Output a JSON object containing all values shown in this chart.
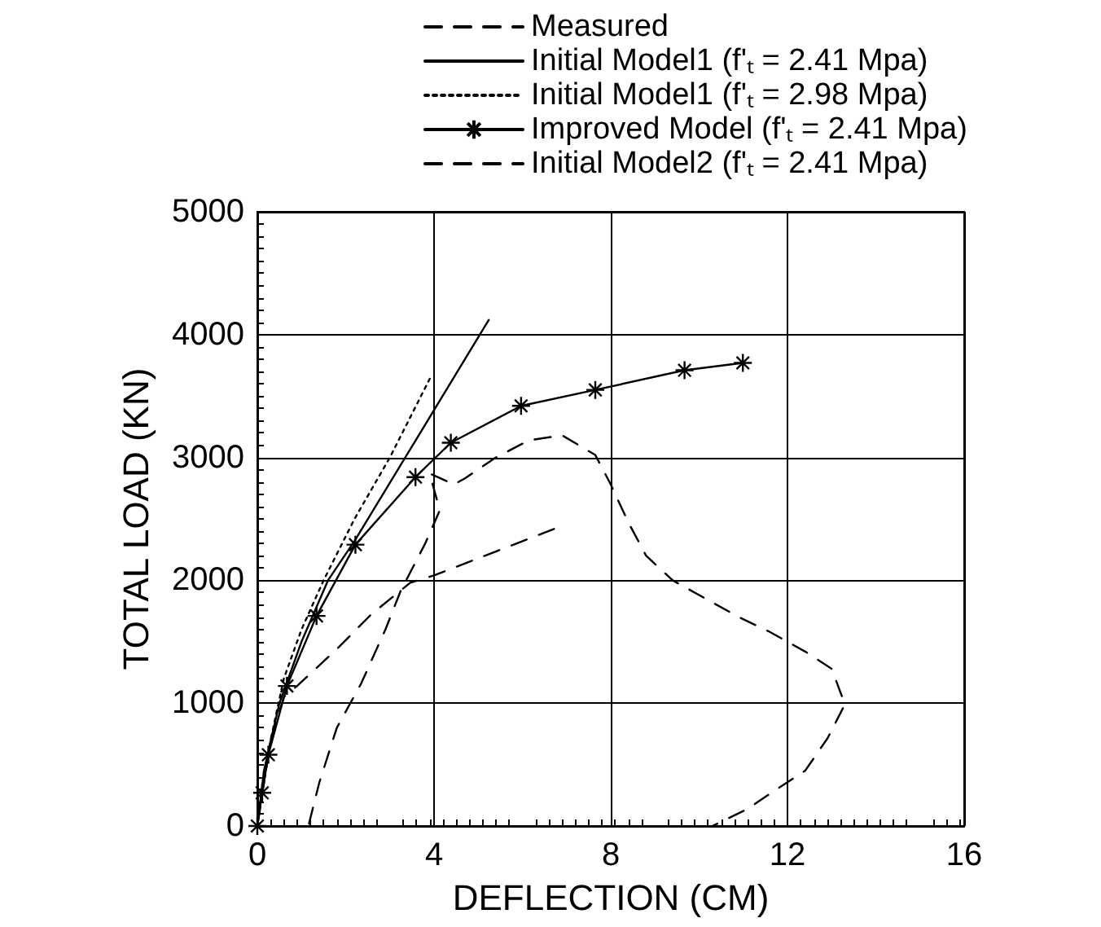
{
  "chart_data": {
    "type": "line",
    "xlabel": "DEFLECTION (CM)",
    "ylabel": "TOTAL LOAD (KN)",
    "xlim": [
      0,
      16
    ],
    "xticks": [
      0,
      4,
      8,
      12,
      16
    ],
    "ylim": [
      0,
      5000
    ],
    "yticks": [
      0,
      1000,
      2000,
      3000,
      4000,
      5000
    ],
    "grid": true,
    "legend": "top",
    "series": [
      {
        "name": "Measured",
        "color": "#000000",
        "line_style": "dashed",
        "marker": "none",
        "x": [
          1.17,
          1.4,
          1.8,
          2.35,
          2.9,
          3.24,
          3.8,
          4.13,
          3.9,
          4.45,
          4.7,
          5.4,
          6.15,
          6.9,
          7.65,
          8.0,
          8.4,
          8.8,
          9.4,
          10.1,
          10.9,
          11.6,
          12.4,
          13.0,
          13.3,
          12.9,
          12.4,
          11.8,
          11.1,
          10.3
        ],
        "values": [
          20,
          350,
          800,
          1160,
          1600,
          1910,
          2300,
          2570,
          2870,
          2780,
          2830,
          3000,
          3140,
          3180,
          3020,
          2780,
          2470,
          2200,
          2000,
          1860,
          1700,
          1580,
          1420,
          1280,
          990,
          710,
          450,
          310,
          140,
          0
        ]
      },
      {
        "name": "Initial Model1 (f'ₜ = 2.41 Mpa)",
        "color": "#000000",
        "line_style": "solid",
        "marker": "none",
        "x": [
          0,
          0.15,
          0.5,
          1.0,
          1.6,
          2.2,
          5.24
        ],
        "values": [
          0,
          450,
          1000,
          1500,
          2000,
          2320,
          4120
        ]
      },
      {
        "name": "Initial Model1 (f'ₜ = 2.98 Mpa)",
        "color": "#000000",
        "line_style": "dotted",
        "marker": "none",
        "x": [
          0,
          0.3,
          0.6,
          1.0,
          1.5,
          2.2,
          3.0,
          3.93
        ],
        "values": [
          0,
          700,
          1200,
          1600,
          2000,
          2500,
          3000,
          3660
        ]
      },
      {
        "name": "Improved Model (f'ₜ = 2.41 Mpa)",
        "color": "#000000",
        "line_style": "solid",
        "marker": "cross",
        "x": [
          0,
          0.11,
          0.25,
          0.67,
          1.34,
          2.22,
          3.58,
          4.38,
          5.97,
          7.65,
          9.67,
          10.99
        ],
        "values": [
          0,
          270,
          580,
          1140,
          1710,
          2290,
          2840,
          3120,
          3420,
          3550,
          3710,
          3770
        ]
      },
      {
        "name": "Initial Model2 (f'ₜ = 2.41 Mpa)",
        "color": "#000000",
        "line_style": "dashed",
        "marker": "none",
        "x": [
          0,
          0.3,
          0.6,
          0.9,
          1.8,
          2.57,
          3.46,
          4.0,
          6.8
        ],
        "values": [
          0,
          700,
          1050,
          1140,
          1440,
          1720,
          1980,
          2040,
          2430
        ]
      }
    ]
  }
}
